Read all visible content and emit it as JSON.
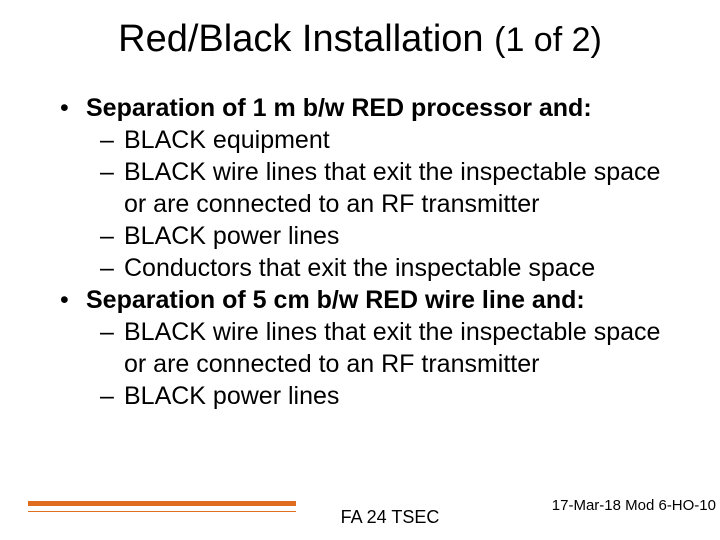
{
  "title_main": "Red/Black Installation ",
  "title_paren": "(1 of 2)",
  "bullets": [
    {
      "text": "Separation of 1 m b/w RED processor and:",
      "subs": [
        "BLACK equipment",
        "BLACK wire lines that exit the inspectable space or are connected to an RF transmitter",
        "BLACK power lines",
        "Conductors that exit the inspectable space"
      ]
    },
    {
      "text": "Separation of 5 cm b/w RED wire line and:",
      "subs": [
        "BLACK wire lines that exit the inspectable space or are connected to an RF transmitter",
        "BLACK power lines"
      ]
    }
  ],
  "footer": {
    "center": "FA 24 TSEC",
    "right": "17-Mar-18 Mod 6-HO-10",
    "line_color": "#e06c1f"
  },
  "colors": {
    "background": "#ffffff",
    "text": "#000000"
  }
}
